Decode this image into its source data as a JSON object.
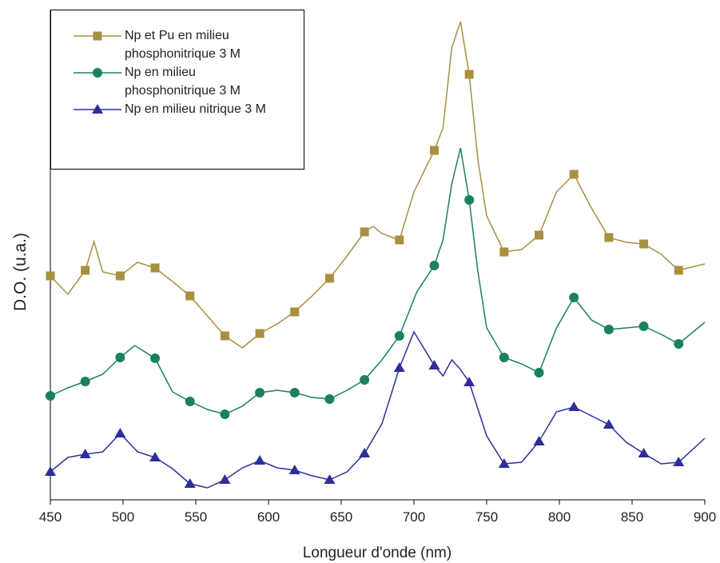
{
  "chart_data": {
    "type": "line",
    "xlabel": "Longueur d'onde (nm)",
    "ylabel": "D.O. (u.a.)",
    "xlim": [
      450,
      900
    ],
    "xticks": [
      450,
      500,
      550,
      600,
      650,
      700,
      750,
      800,
      850,
      900
    ],
    "ylim": [
      0,
      613
    ],
    "marker_x": [
      450,
      474,
      498,
      522,
      546,
      570,
      594,
      618,
      642,
      666,
      690,
      714,
      738,
      762,
      786,
      810,
      834,
      858,
      882
    ],
    "legend": "upper left",
    "series": [
      {
        "name": "Np et Pu en milieu phosphonitrique 3 M",
        "color": "#a89040",
        "marker": "square",
        "x": [
          450,
          462,
          474,
          480,
          486,
          498,
          510,
          522,
          534,
          546,
          558,
          570,
          582,
          594,
          606,
          618,
          630,
          642,
          654,
          666,
          672,
          678,
          690,
          700,
          714,
          720,
          726,
          732,
          738,
          744,
          750,
          762,
          774,
          786,
          798,
          810,
          822,
          834,
          846,
          858,
          870,
          882,
          900
        ],
        "values": [
          280,
          257,
          287,
          323,
          285,
          280,
          297,
          290,
          273,
          255,
          230,
          205,
          190,
          208,
          220,
          235,
          255,
          277,
          305,
          335,
          342,
          333,
          325,
          385,
          437,
          465,
          565,
          598,
          532,
          425,
          355,
          310,
          313,
          331,
          385,
          407,
          365,
          328,
          322,
          320,
          307,
          287,
          295
        ]
      },
      {
        "name": "Np en milieu phosphonitrique 3 M",
        "color": "#1a8060",
        "marker": "circle",
        "x": [
          450,
          462,
          474,
          486,
          498,
          508,
          522,
          534,
          546,
          558,
          570,
          582,
          594,
          606,
          618,
          630,
          642,
          654,
          666,
          678,
          690,
          702,
          714,
          720,
          726,
          732,
          738,
          744,
          750,
          762,
          774,
          786,
          798,
          810,
          822,
          834,
          846,
          858,
          870,
          882,
          900
        ],
        "values": [
          130,
          140,
          148,
          157,
          178,
          193,
          177,
          135,
          123,
          113,
          107,
          117,
          134,
          137,
          134,
          128,
          126,
          137,
          150,
          175,
          205,
          260,
          293,
          325,
          395,
          440,
          375,
          285,
          215,
          178,
          170,
          159,
          215,
          253,
          225,
          213,
          215,
          217,
          207,
          195,
          222
        ]
      },
      {
        "name": "Np en milieu nitrique 3 M",
        "color": "#2e2e9a",
        "marker": "triangle",
        "x": [
          450,
          462,
          474,
          486,
          498,
          510,
          522,
          534,
          546,
          558,
          570,
          582,
          594,
          606,
          618,
          630,
          642,
          654,
          666,
          678,
          690,
          700,
          714,
          720,
          726,
          732,
          738,
          750,
          762,
          774,
          786,
          798,
          810,
          822,
          834,
          846,
          858,
          870,
          882,
          900
        ],
        "values": [
          35,
          53,
          57,
          60,
          83,
          60,
          53,
          39,
          20,
          15,
          25,
          40,
          49,
          40,
          37,
          30,
          25,
          35,
          58,
          95,
          165,
          210,
          168,
          155,
          175,
          163,
          147,
          80,
          45,
          47,
          73,
          110,
          116,
          105,
          94,
          72,
          58,
          45,
          47,
          77
        ]
      }
    ]
  }
}
